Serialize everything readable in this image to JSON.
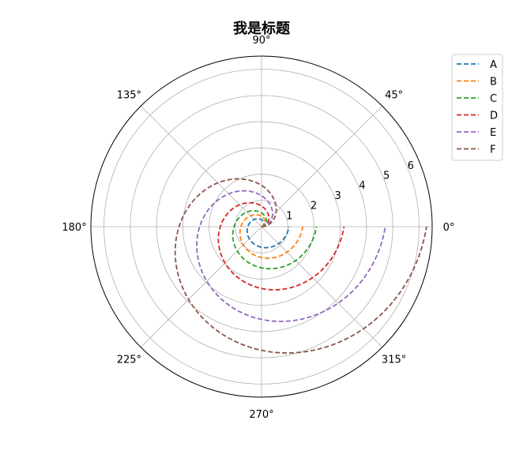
{
  "chart_data": {
    "type": "polar-line",
    "title": "我是标题",
    "theta_ticks": [
      "0°",
      "45°",
      "90°",
      "135°",
      "180°",
      "225°",
      "270°",
      "315°"
    ],
    "theta_tick_degrees": [
      0,
      45,
      90,
      135,
      180,
      225,
      270,
      315
    ],
    "r_ticks": [
      "1",
      "2",
      "3",
      "4",
      "5",
      "6"
    ],
    "r_tick_values": [
      1,
      2,
      3,
      4,
      5,
      6
    ],
    "r_max": 6.5,
    "r_label_angle_deg": 22.5,
    "grid": true,
    "line_style": "dashed",
    "theta_range_deg": [
      0,
      360
    ],
    "series": [
      {
        "name": "A",
        "color": "#1f77b4",
        "r_formula": "a*theta",
        "a": 0.1667
      },
      {
        "name": "B",
        "color": "#ff7f0e",
        "r_formula": "a*theta",
        "a": 0.25
      },
      {
        "name": "C",
        "color": "#2ca02c",
        "r_formula": "a*theta",
        "a": 0.3333
      },
      {
        "name": "D",
        "color": "#d62728",
        "r_formula": "a*theta",
        "a": 0.5
      },
      {
        "name": "E",
        "color": "#9467bd",
        "r_formula": "a*theta",
        "a": 0.75
      },
      {
        "name": "F",
        "color": "#8c564b",
        "r_formula": "a*theta",
        "a": 1.0
      }
    ],
    "legend_position": "top-right"
  }
}
